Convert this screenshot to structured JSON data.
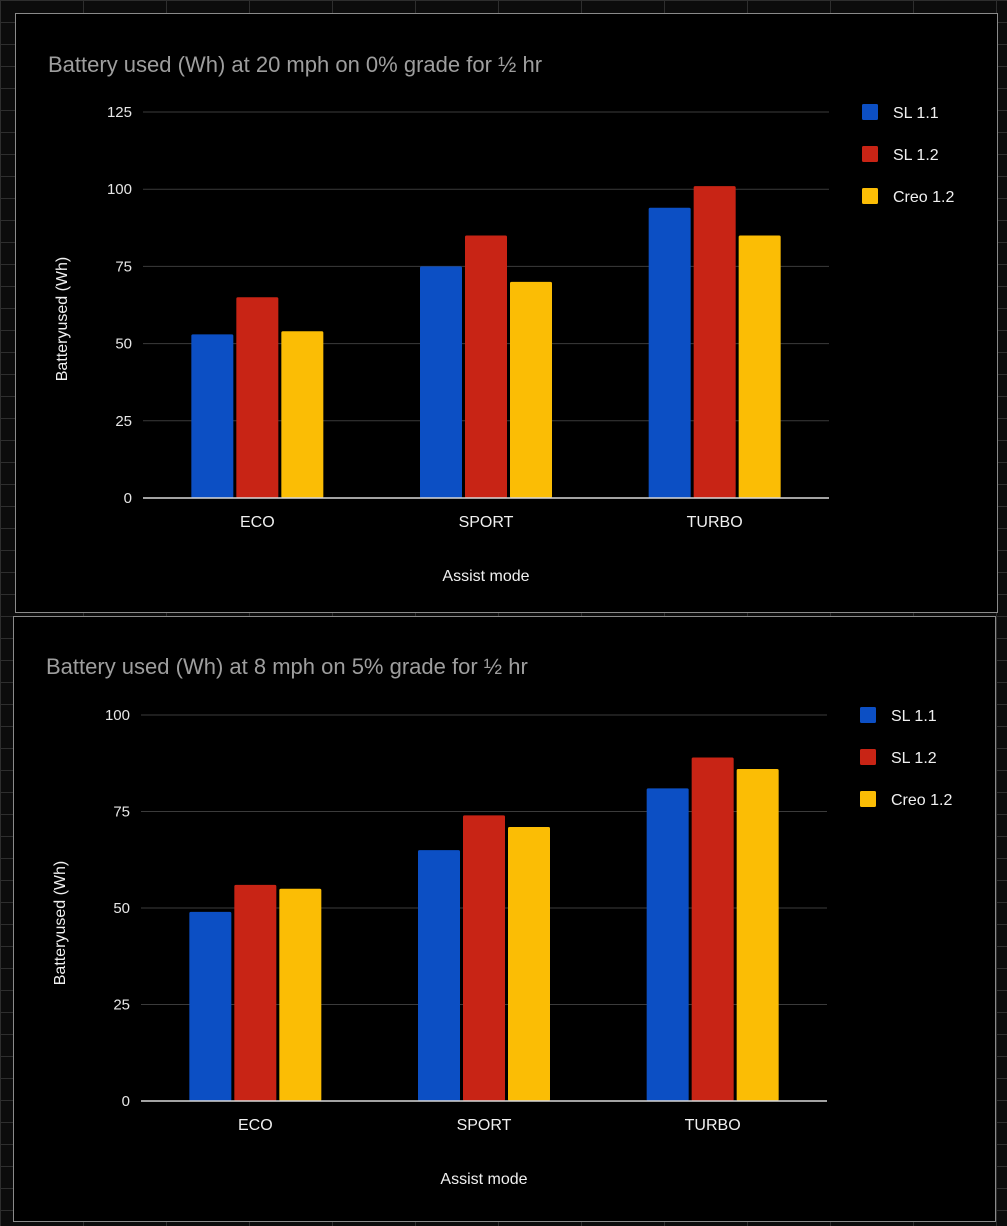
{
  "chart_data": [
    {
      "type": "bar",
      "title": "Battery used (Wh) at 20 mph on 0% grade for ½ hr",
      "xlabel": "Assist mode",
      "ylabel": "Batteryused (Wh)",
      "categories": [
        "ECO",
        "SPORT",
        "TURBO"
      ],
      "ylim": [
        0,
        125
      ],
      "yticks": [
        0,
        25,
        50,
        75,
        100,
        125
      ],
      "grid": true,
      "legend_position": "right",
      "series": [
        {
          "name": "SL 1.1",
          "color": "#0c4fc4",
          "values": [
            53,
            75,
            94
          ]
        },
        {
          "name": "SL 1.2",
          "color": "#c82415",
          "values": [
            65,
            85,
            101
          ]
        },
        {
          "name": "Creo 1.2",
          "color": "#fbbd05",
          "values": [
            54,
            70,
            85
          ]
        }
      ]
    },
    {
      "type": "bar",
      "title": "Battery used (Wh) at 8 mph on 5% grade for ½ hr",
      "xlabel": "Assist mode",
      "ylabel": "Batteryused (Wh)",
      "categories": [
        "ECO",
        "SPORT",
        "TURBO"
      ],
      "ylim": [
        0,
        100
      ],
      "yticks": [
        0,
        25,
        50,
        75,
        100
      ],
      "grid": true,
      "legend_position": "right",
      "series": [
        {
          "name": "SL 1.1",
          "color": "#0c4fc4",
          "values": [
            49,
            65,
            81
          ]
        },
        {
          "name": "SL 1.2",
          "color": "#c82415",
          "values": [
            56,
            74,
            89
          ]
        },
        {
          "name": "Creo 1.2",
          "color": "#fbbd05",
          "values": [
            55,
            71,
            86
          ]
        }
      ]
    }
  ]
}
